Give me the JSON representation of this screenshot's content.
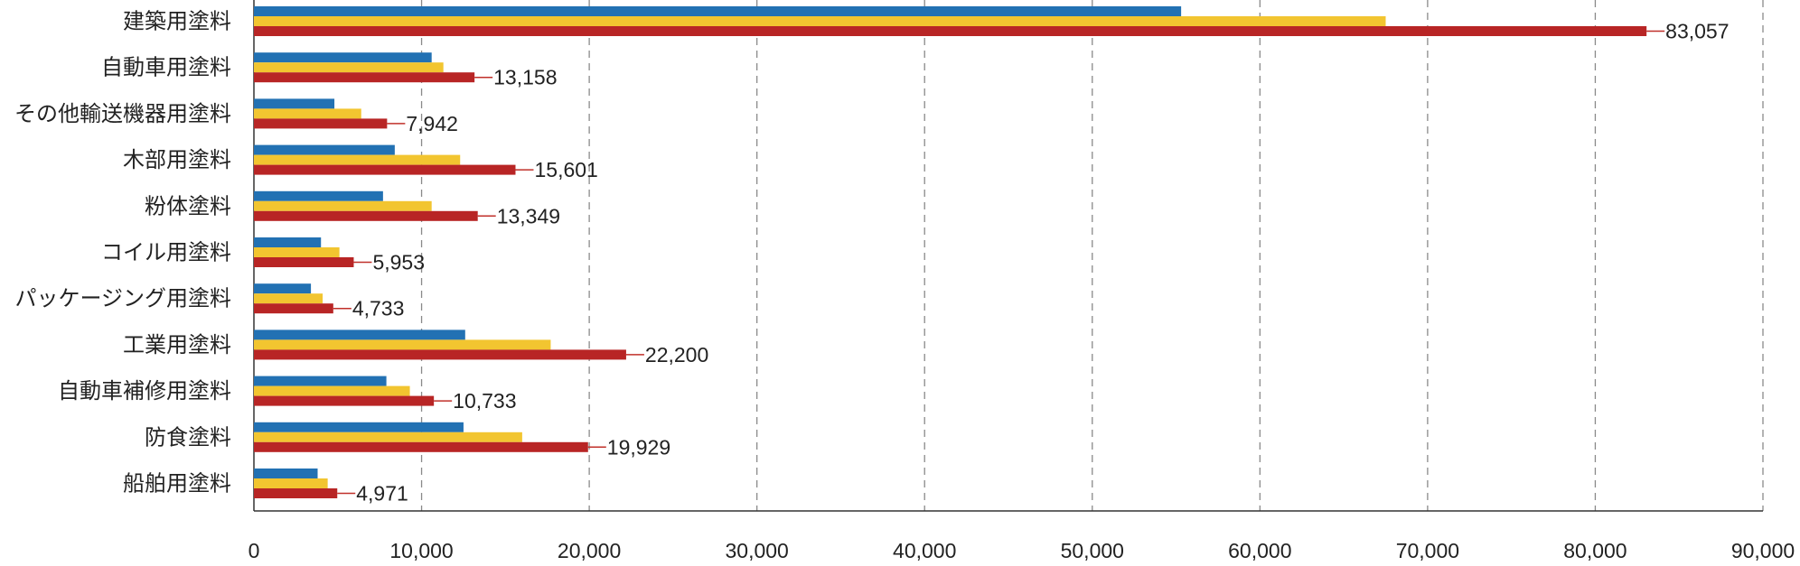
{
  "chart_data": {
    "type": "bar",
    "orientation": "horizontal",
    "categories": [
      "建築用塗料",
      "自動車用塗料",
      "その他輸送機器用塗料",
      "木部用塗料",
      "粉体塗料",
      "コイル用塗料",
      "パッケージング用塗料",
      "工業用塗料",
      "自動車補修用塗料",
      "防食塗料",
      "船舶用塗料"
    ],
    "series": [
      {
        "color": "#2271b3",
        "values": [
          55300,
          10600,
          4800,
          8400,
          7700,
          4000,
          3400,
          12600,
          7900,
          12500,
          3800
        ]
      },
      {
        "color": "#f2c530",
        "values": [
          67500,
          11300,
          6400,
          12300,
          10600,
          5100,
          4100,
          17700,
          9300,
          16000,
          4400
        ]
      },
      {
        "color": "#b82525",
        "values": [
          83057,
          13158,
          7942,
          15601,
          13349,
          5953,
          4733,
          22200,
          10733,
          19929,
          4971
        ]
      }
    ],
    "data_labels": [
      "83,057",
      "13,158",
      "7,942",
      "15,601",
      "13,349",
      "5,953",
      "4,733",
      "22,200",
      "10,733",
      "19,929",
      "4,971"
    ],
    "x_ticks": [
      "0",
      "10,000",
      "20,000",
      "30,000",
      "40,000",
      "50,000",
      "60,000",
      "70,000",
      "80,000",
      "90,000"
    ],
    "xlim": [
      0,
      90000
    ],
    "grid": "vertical dashed",
    "legend": "none"
  }
}
